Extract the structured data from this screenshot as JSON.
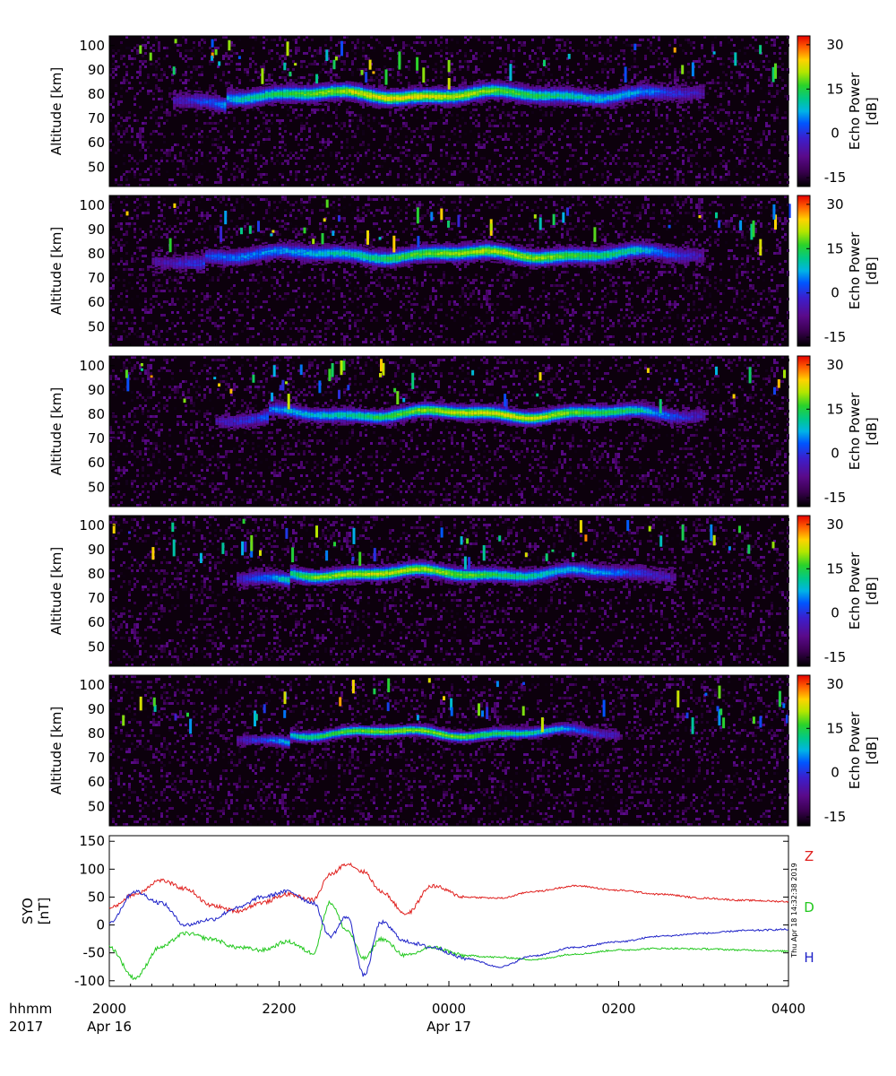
{
  "chart_data": [
    {
      "type": "heatmap",
      "panel": 1,
      "ylabel": "Altitude [km]",
      "yticks": [
        50,
        60,
        70,
        80,
        90,
        100
      ],
      "ylim": [
        42,
        104
      ],
      "colorbar": {
        "label_line1": "Echo Power",
        "label_line2": "[dB]",
        "ticks": [
          -15,
          0,
          15,
          30
        ],
        "range": [
          -18,
          33
        ]
      },
      "echo_layer": {
        "start_hhmm": "2045",
        "end_hhmm": "0300",
        "altitude_km": [
          75,
          84
        ],
        "peak_db": 28,
        "peak_hhmm": "2330"
      }
    },
    {
      "type": "heatmap",
      "panel": 2,
      "ylabel": "Altitude [km]",
      "yticks": [
        50,
        60,
        70,
        80,
        90,
        100
      ],
      "ylim": [
        42,
        104
      ],
      "colorbar": {
        "label_line1": "Echo Power",
        "label_line2": "[dB]",
        "ticks": [
          -15,
          0,
          15,
          30
        ],
        "range": [
          -18,
          33
        ]
      },
      "echo_layer": {
        "start_hhmm": "2030",
        "end_hhmm": "0300",
        "altitude_km": [
          75,
          84
        ],
        "peak_db": 25,
        "peak_hhmm": "0030"
      }
    },
    {
      "type": "heatmap",
      "panel": 3,
      "ylabel": "Altitude [km]",
      "yticks": [
        50,
        60,
        70,
        80,
        90,
        100
      ],
      "ylim": [
        42,
        104
      ],
      "colorbar": {
        "label_line1": "Echo Power",
        "label_line2": "[dB]",
        "ticks": [
          -15,
          0,
          15,
          30
        ],
        "range": [
          -18,
          33
        ]
      },
      "echo_layer": {
        "start_hhmm": "2115",
        "end_hhmm": "0300",
        "altitude_km": [
          76,
          84
        ],
        "peak_db": 27,
        "peak_hhmm": "0030"
      }
    },
    {
      "type": "heatmap",
      "panel": 4,
      "ylabel": "Altitude [km]",
      "yticks": [
        50,
        60,
        70,
        80,
        90,
        100
      ],
      "ylim": [
        42,
        104
      ],
      "colorbar": {
        "label_line1": "Echo Power",
        "label_line2": "[dB]",
        "ticks": [
          -15,
          0,
          15,
          30
        ],
        "range": [
          -18,
          33
        ]
      },
      "echo_layer": {
        "start_hhmm": "2130",
        "end_hhmm": "0240",
        "altitude_km": [
          76,
          84
        ],
        "peak_db": 26,
        "peak_hhmm": "2315"
      }
    },
    {
      "type": "heatmap",
      "panel": 5,
      "ylabel": "Altitude [km]",
      "yticks": [
        50,
        60,
        70,
        80,
        90,
        100
      ],
      "ylim": [
        42,
        104
      ],
      "colorbar": {
        "label_line1": "Echo Power",
        "label_line2": "[dB]",
        "ticks": [
          -15,
          0,
          15,
          30
        ],
        "range": [
          -18,
          33
        ]
      },
      "echo_layer": {
        "start_hhmm": "2130",
        "end_hhmm": "0200",
        "altitude_km": [
          77,
          83
        ],
        "peak_db": 24,
        "peak_hhmm": "2330"
      }
    },
    {
      "type": "line",
      "panel": 6,
      "ylabel_line1": "SYO",
      "ylabel_line2": "[nT]",
      "yticks": [
        -100,
        -50,
        0,
        50,
        100,
        150
      ],
      "ylim": [
        -110,
        160
      ],
      "x_unit": "hours after 2000 UT Apr 16",
      "series": [
        {
          "name": "Z",
          "color": "#e0201e",
          "x": [
            0,
            0.3,
            0.6,
            0.9,
            1.2,
            1.5,
            1.8,
            2.1,
            2.4,
            2.6,
            2.8,
            3.0,
            3.2,
            3.5,
            3.8,
            4.2,
            4.6,
            5.0,
            5.5,
            6.0,
            6.5,
            7.0,
            7.5,
            8.0
          ],
          "y": [
            30,
            55,
            80,
            65,
            35,
            25,
            40,
            55,
            45,
            90,
            110,
            95,
            60,
            20,
            70,
            50,
            48,
            60,
            70,
            62,
            55,
            48,
            44,
            42
          ]
        },
        {
          "name": "D",
          "color": "#22c81e",
          "x": [
            0,
            0.3,
            0.6,
            0.9,
            1.2,
            1.5,
            1.8,
            2.1,
            2.4,
            2.6,
            2.8,
            3.0,
            3.2,
            3.5,
            3.8,
            4.2,
            4.6,
            5.0,
            5.5,
            6.0,
            6.5,
            7.0,
            7.5,
            8.0
          ],
          "y": [
            -40,
            -95,
            -40,
            -15,
            -25,
            -40,
            -45,
            -30,
            -50,
            40,
            -10,
            -60,
            -25,
            -55,
            -40,
            -55,
            -58,
            -62,
            -52,
            -45,
            -42,
            -43,
            -45,
            -47
          ]
        },
        {
          "name": "H",
          "color": "#1e22c8",
          "x": [
            0,
            0.3,
            0.6,
            0.9,
            1.2,
            1.5,
            1.8,
            2.1,
            2.4,
            2.6,
            2.8,
            3.0,
            3.2,
            3.5,
            3.8,
            4.2,
            4.6,
            5.0,
            5.5,
            6.0,
            6.5,
            7.0,
            7.5,
            8.0
          ],
          "y": [
            5,
            60,
            40,
            0,
            10,
            30,
            50,
            60,
            40,
            -20,
            15,
            -90,
            5,
            -30,
            -40,
            -60,
            -75,
            -55,
            -40,
            -30,
            -20,
            -15,
            -10,
            -8
          ]
        }
      ]
    }
  ],
  "xaxis": {
    "row1_label": "hhmm",
    "row2_label": "2017",
    "ticks": [
      {
        "hhmm": "2000",
        "date": "Apr 16"
      },
      {
        "hhmm": "2200",
        "date": ""
      },
      {
        "hhmm": "0000",
        "date": "Apr 17"
      },
      {
        "hhmm": "0200",
        "date": ""
      },
      {
        "hhmm": "0400",
        "date": ""
      }
    ]
  },
  "timestamp": "Thu Apr 18 14:32:38 2019",
  "colors": {
    "background": "#ffffff",
    "frame": "#000000",
    "plot_bg": "#0c000c"
  }
}
